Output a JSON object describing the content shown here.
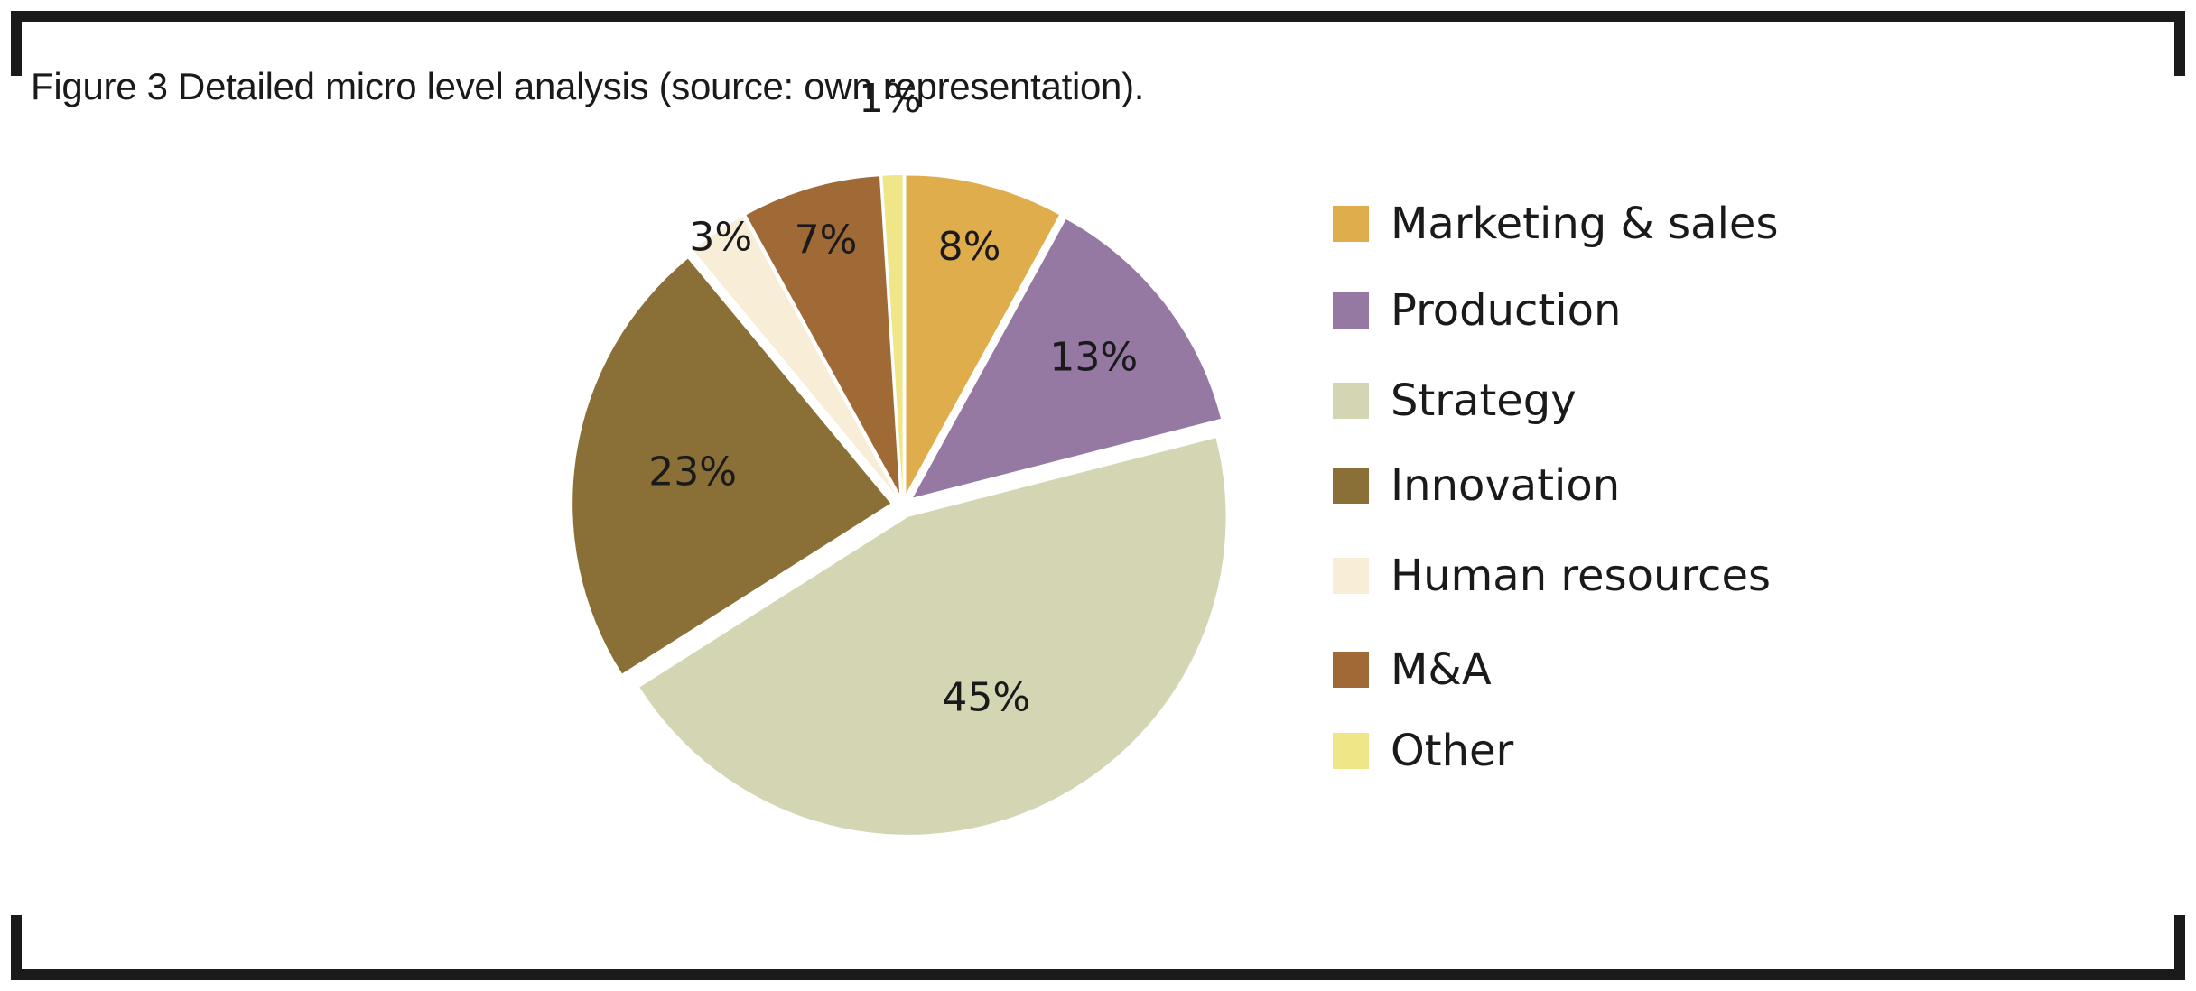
{
  "caption": "Figure 3 Detailed micro level analysis (source: own representation).",
  "chart_data": {
    "type": "pie",
    "title": "Figure 3 Detailed micro level analysis (source: own representation).",
    "legend_position": "right",
    "exploded": true,
    "slices": [
      {
        "name": "Marketing & sales",
        "value": 8,
        "label": "8%",
        "color": "#E0AD4C"
      },
      {
        "name": "Production",
        "value": 13,
        "label": "13%",
        "color": "#9579A3"
      },
      {
        "name": "Strategy",
        "value": 45,
        "label": "45%",
        "color": "#D3D5B3"
      },
      {
        "name": "Innovation",
        "value": 23,
        "label": "23%",
        "color": "#8A6F37"
      },
      {
        "name": "Human resources",
        "value": 3,
        "label": "3%",
        "color": "#F8EED8"
      },
      {
        "name": "M&A",
        "value": 7,
        "label": "7%",
        "color": "#A06A37"
      },
      {
        "name": "Other",
        "value": 1,
        "label": "1%",
        "color": "#EEE687"
      }
    ]
  }
}
